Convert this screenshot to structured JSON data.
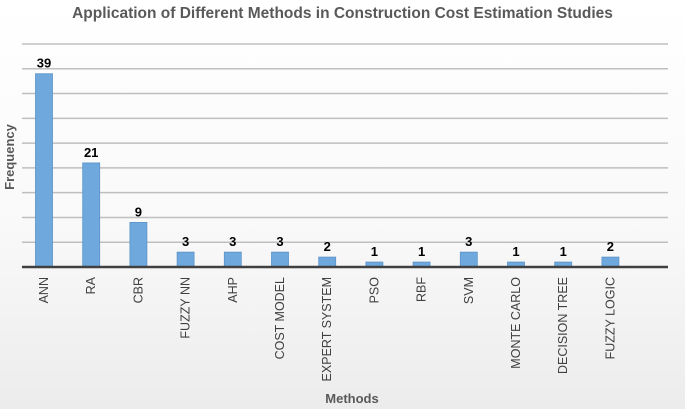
{
  "chart_data": {
    "type": "bar",
    "title": "Application of Different Methods in Construction Cost Estimation Studies",
    "xlabel": "Methods",
    "ylabel": "Frequency",
    "categories": [
      "ANN",
      "RA",
      "CBR",
      "FUZZY NN",
      "AHP",
      "COST MODEL",
      "EXPERT SYSTEM",
      "PSO",
      "RBF",
      "SVM",
      "MONTE CARLO",
      "DECISION TREE",
      "FUZZY LOGIC"
    ],
    "values": [
      39,
      21,
      9,
      3,
      3,
      3,
      2,
      1,
      1,
      3,
      1,
      1,
      2
    ],
    "data_labels": [
      "39",
      "21",
      "9",
      "3",
      "3",
      "3",
      "2",
      "1",
      "1",
      "3",
      "1",
      "1",
      "2"
    ],
    "ylim": [
      0,
      45
    ],
    "ytick_step": 5,
    "grid": true,
    "bar_color": "#6fa8dc",
    "bar_edge_color": "#5b93c9",
    "grid_color": "#bfbfbf",
    "axis_color": "#404040"
  }
}
